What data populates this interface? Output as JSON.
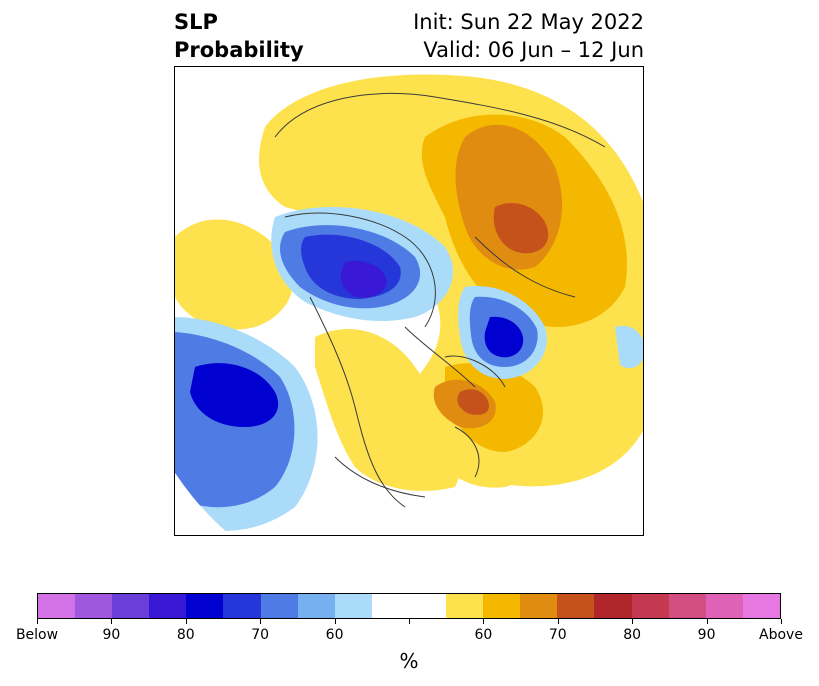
{
  "title": {
    "left_line1": "SLP",
    "left_line2": "Probability",
    "right_line1": "Init: Sun 22 May 2022",
    "right_line2": "Valid: 06 Jun – 12 Jun"
  },
  "colorbar": {
    "unit": "%",
    "colors": [
      "#d371e6",
      "#a057e0",
      "#6a3ed9",
      "#3919d6",
      "#0000d0",
      "#2537d9",
      "#4f7be4",
      "#76b0f0",
      "#aadcfa",
      "#ffffff",
      "#ffffff",
      "#fde24d",
      "#f5b800",
      "#e08c10",
      "#c6521b",
      "#b0262a",
      "#c4394f",
      "#d24e82",
      "#df62b7",
      "#e878e1"
    ],
    "tick_labels": [
      "Below",
      "90",
      "80",
      "70",
      "60",
      "",
      "60",
      "70",
      "80",
      "90",
      "Above"
    ]
  },
  "map": {
    "fields": {
      "below_max_pacific": "#0000d0",
      "below_arctic": "#2537d9",
      "below_atlantic": "#3919d6",
      "above_max_siberia": "#c6521b",
      "above_max_newfoundland": "#c6521b"
    }
  }
}
